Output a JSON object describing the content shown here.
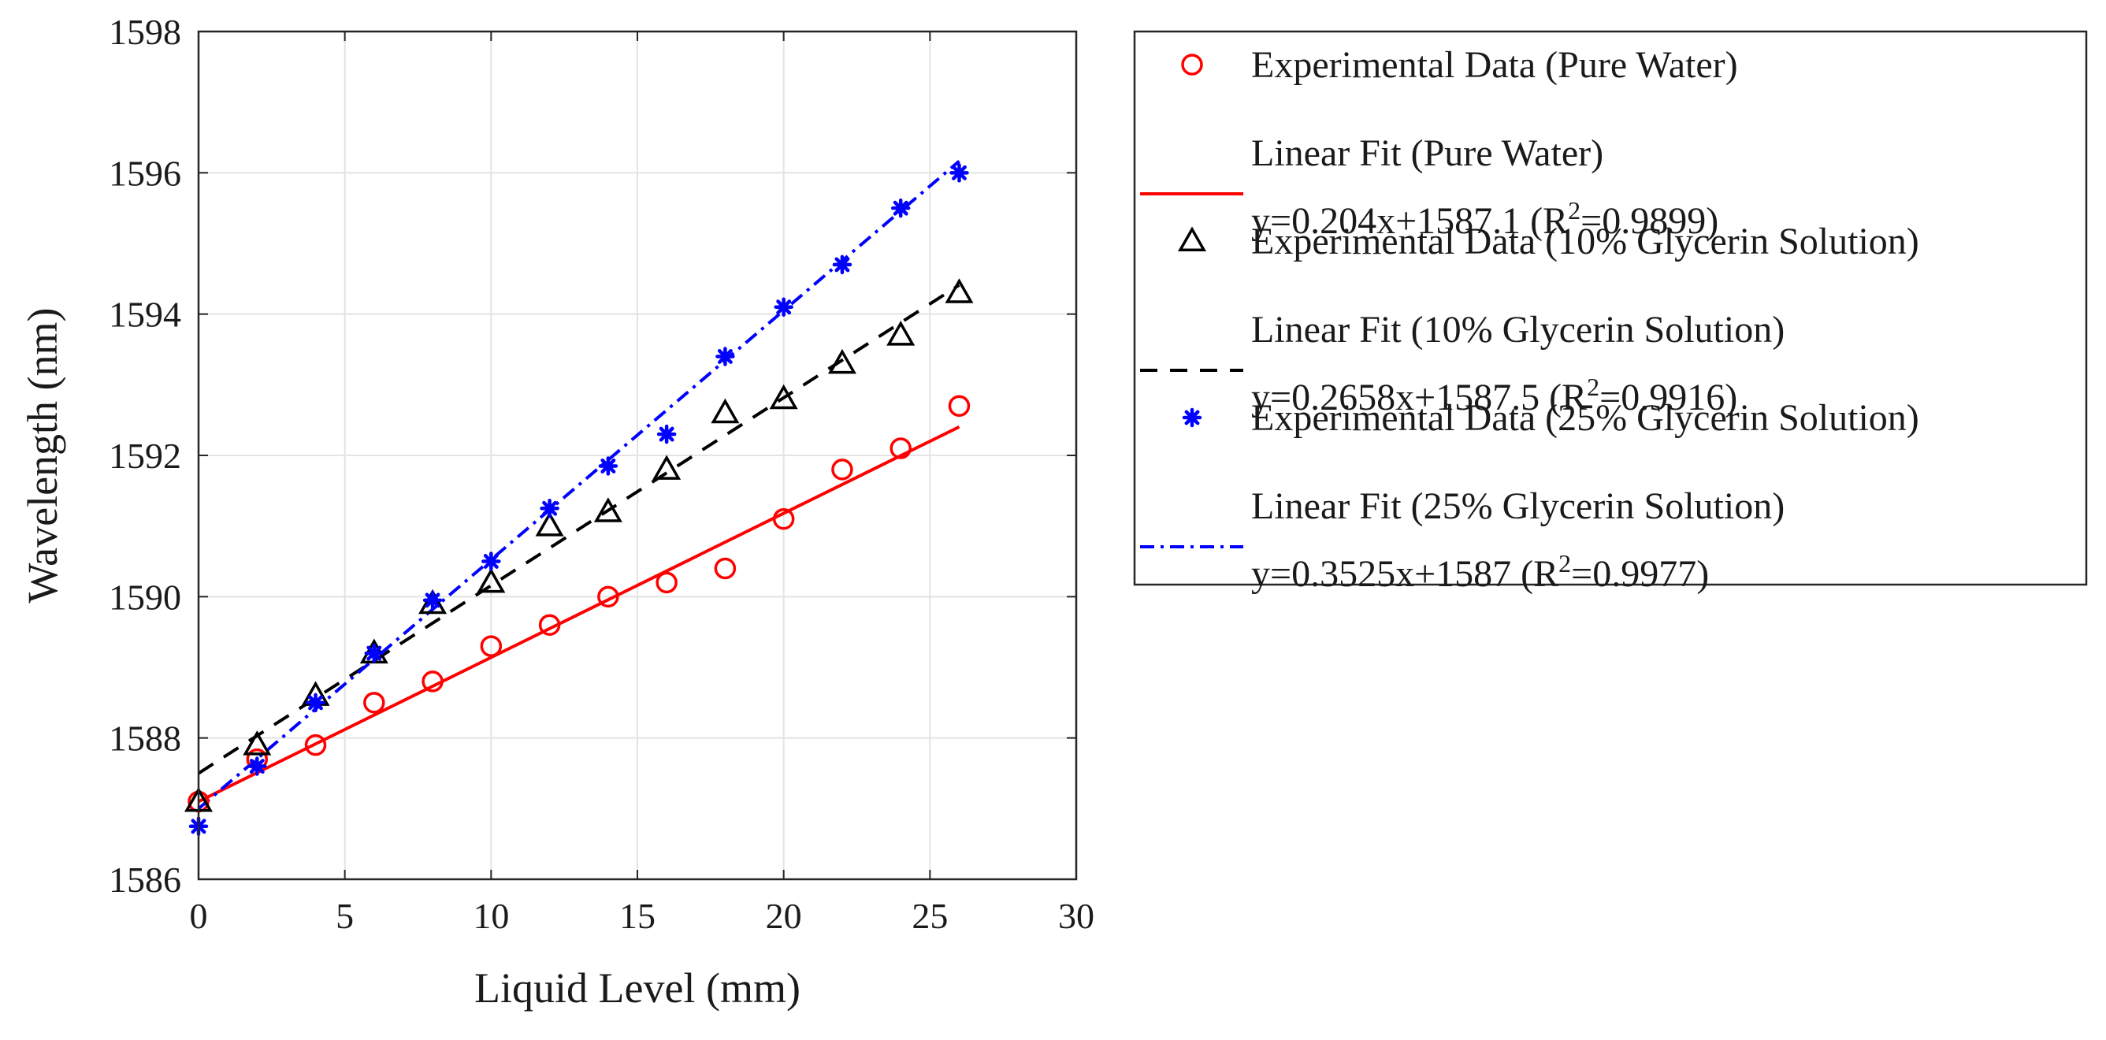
{
  "chart_data": {
    "type": "scatter",
    "title": "",
    "xlabel": "Liquid Level (mm)",
    "ylabel": "Wavelength (nm)",
    "xlim": [
      0,
      30
    ],
    "ylim": [
      1586,
      1598
    ],
    "xticks": [
      0,
      5,
      10,
      15,
      20,
      25,
      30
    ],
    "yticks": [
      1586,
      1588,
      1590,
      1592,
      1594,
      1596,
      1598
    ],
    "xtick_labels": [
      "0",
      "5",
      "10",
      "15",
      "20",
      "25",
      "30"
    ],
    "ytick_labels": [
      "1586",
      "1588",
      "1590",
      "1592",
      "1594",
      "1596",
      "1598"
    ],
    "grid": true,
    "legend_position": "right, outside plot",
    "series": [
      {
        "name": "Experimental Data (Pure Water)",
        "kind": "markers",
        "marker": "circle",
        "color": "#ff0000",
        "x": [
          0,
          2,
          4,
          6,
          8,
          10,
          12,
          14,
          16,
          18,
          20,
          22,
          24,
          26
        ],
        "y": [
          1587.1,
          1587.7,
          1587.9,
          1588.5,
          1588.8,
          1589.3,
          1589.6,
          1590.0,
          1590.2,
          1590.4,
          1591.1,
          1591.8,
          1592.1,
          1592.7
        ]
      },
      {
        "name": "Linear Fit (Pure Water)",
        "equation": "y=0.204x+1587.1 (R",
        "r2": "=0.9899)",
        "kind": "line",
        "line_style": "solid",
        "color": "#ff0000",
        "slope": 0.204,
        "intercept": 1587.1,
        "x_range": [
          0,
          26
        ]
      },
      {
        "name": "Experimental Data (10% Glycerin Solution)",
        "kind": "markers",
        "marker": "triangle",
        "color": "#000000",
        "x": [
          0,
          2,
          4,
          6,
          8,
          10,
          12,
          14,
          16,
          18,
          20,
          22,
          24,
          26
        ],
        "y": [
          1587.1,
          1587.9,
          1588.6,
          1589.2,
          1589.9,
          1590.2,
          1591.0,
          1591.2,
          1591.8,
          1592.6,
          1592.8,
          1593.3,
          1593.7,
          1594.3
        ]
      },
      {
        "name": "Linear Fit (10% Glycerin Solution)",
        "equation": "y=0.2658x+1587.5 (R",
        "r2": "=0.9916)",
        "kind": "line",
        "line_style": "dashed",
        "color": "#000000",
        "slope": 0.2658,
        "intercept": 1587.5,
        "x_range": [
          0,
          26
        ]
      },
      {
        "name": "Experimental Data (25% Glycerin Solution)",
        "kind": "markers",
        "marker": "asterisk",
        "color": "#0000ff",
        "x": [
          0,
          2,
          4,
          6,
          8,
          10,
          12,
          14,
          16,
          18,
          20,
          22,
          24,
          26
        ],
        "y": [
          1586.75,
          1587.6,
          1588.5,
          1589.2,
          1589.95,
          1590.5,
          1591.25,
          1591.85,
          1592.3,
          1593.4,
          1594.1,
          1594.7,
          1595.5,
          1596.0
        ]
      },
      {
        "name": "Linear Fit (25% Glycerin Solution)",
        "equation": "y=0.3525x+1587 (R",
        "r2": "=0.9977)",
        "kind": "line",
        "line_style": "dashdot",
        "color": "#0000ff",
        "slope": 0.3525,
        "intercept": 1587,
        "x_range": [
          0,
          26
        ]
      }
    ]
  }
}
